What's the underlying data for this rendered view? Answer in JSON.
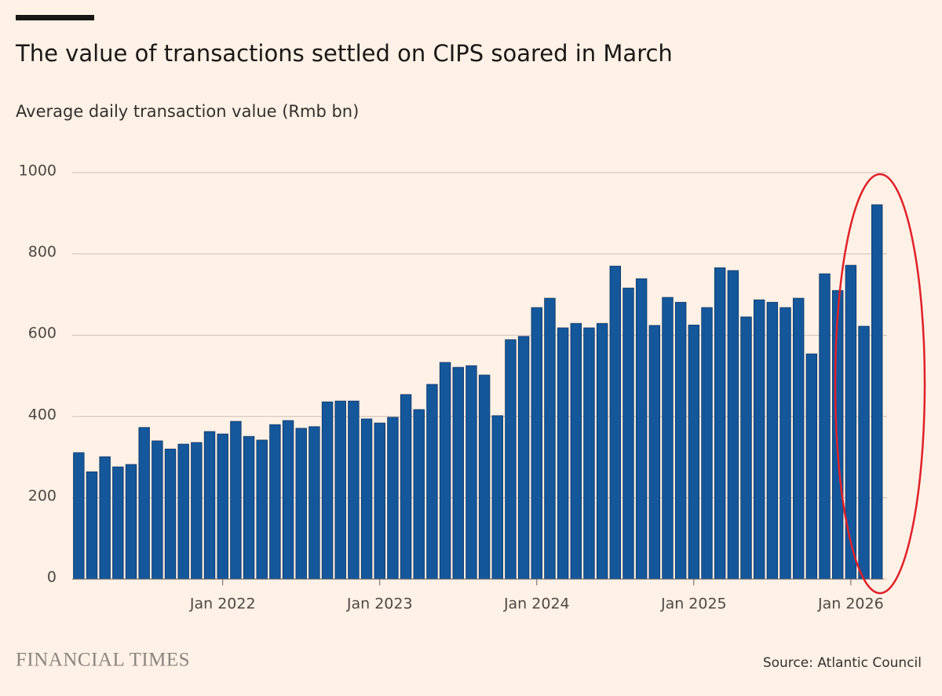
{
  "chart_data": {
    "type": "bar",
    "title": "The value of transactions settled on CIPS soared in March",
    "subtitle": "Average daily transaction value (Rmb bn)",
    "brand": "FINANCIAL TIMES",
    "source": "Source: Atlantic Council",
    "categories": [
      null,
      null,
      null,
      null,
      null,
      null,
      null,
      null,
      null,
      null,
      null,
      "Jan 2022",
      null,
      null,
      null,
      null,
      null,
      null,
      null,
      null,
      null,
      null,
      null,
      "Jan 2023",
      null,
      null,
      null,
      null,
      null,
      null,
      null,
      null,
      null,
      null,
      null,
      "Jan 2024",
      null,
      null,
      null,
      null,
      null,
      null,
      null,
      null,
      null,
      null,
      null,
      "Jan 2025",
      null,
      null,
      null,
      null,
      null,
      null,
      null,
      null,
      null,
      null,
      null,
      "Jan 2026",
      null,
      null
    ],
    "values": [
      311,
      264,
      301,
      276,
      282,
      373,
      340,
      320,
      332,
      336,
      363,
      357,
      388,
      351,
      342,
      380,
      390,
      371,
      375,
      436,
      438,
      438,
      394,
      384,
      398,
      454,
      417,
      479,
      533,
      521,
      525,
      502,
      402,
      589,
      597,
      668,
      691,
      618,
      629,
      618,
      629,
      770,
      716,
      739,
      624,
      693,
      681,
      625,
      668,
      766,
      759,
      645,
      687,
      681,
      668,
      691,
      554,
      751,
      710,
      772,
      622,
      921
    ],
    "color": "#14579b",
    "ylim": [
      0,
      1000
    ],
    "yticks": [
      0,
      200,
      400,
      600,
      800,
      1000
    ],
    "grid": true
  }
}
